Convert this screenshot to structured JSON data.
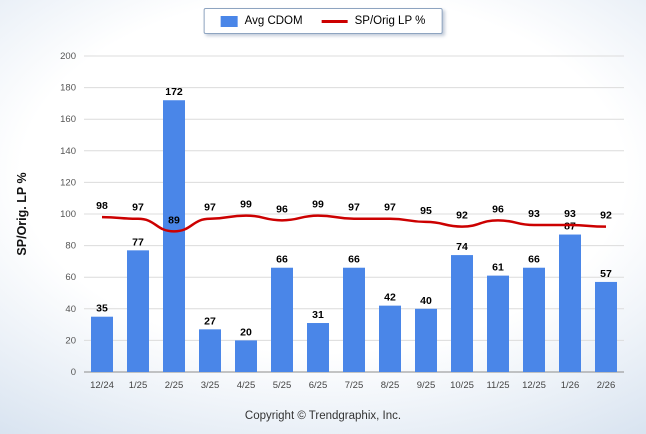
{
  "legend": {
    "bar_label": "Avg CDOM",
    "line_label": "SP/Orig LP %"
  },
  "footer": {
    "copyright": "Copyright © Trendgraphix, Inc."
  },
  "chart_data": {
    "type": "bar",
    "combo": "bar+line",
    "title": "",
    "categories": [
      "12/24",
      "1/25",
      "2/25",
      "3/25",
      "4/25",
      "5/25",
      "6/25",
      "7/25",
      "8/25",
      "9/25",
      "10/25",
      "11/25",
      "12/25",
      "1/26",
      "2/26"
    ],
    "series": [
      {
        "name": "Avg CDOM",
        "type": "bar",
        "color": "#4a86e8",
        "values": [
          35,
          77,
          172,
          27,
          20,
          66,
          31,
          66,
          42,
          40,
          74,
          61,
          66,
          87,
          57
        ]
      },
      {
        "name": "SP/Orig LP %",
        "type": "line",
        "color": "#cc0000",
        "values": [
          98,
          97,
          89,
          97,
          99,
          96,
          99,
          97,
          97,
          95,
          92,
          96,
          93,
          93,
          92
        ]
      }
    ],
    "xlabel": "",
    "ylabel": "SP/Orig. LP %",
    "ylim": [
      0,
      200
    ],
    "ytick_step": 20,
    "grid": true,
    "legend_position": "top-center"
  }
}
